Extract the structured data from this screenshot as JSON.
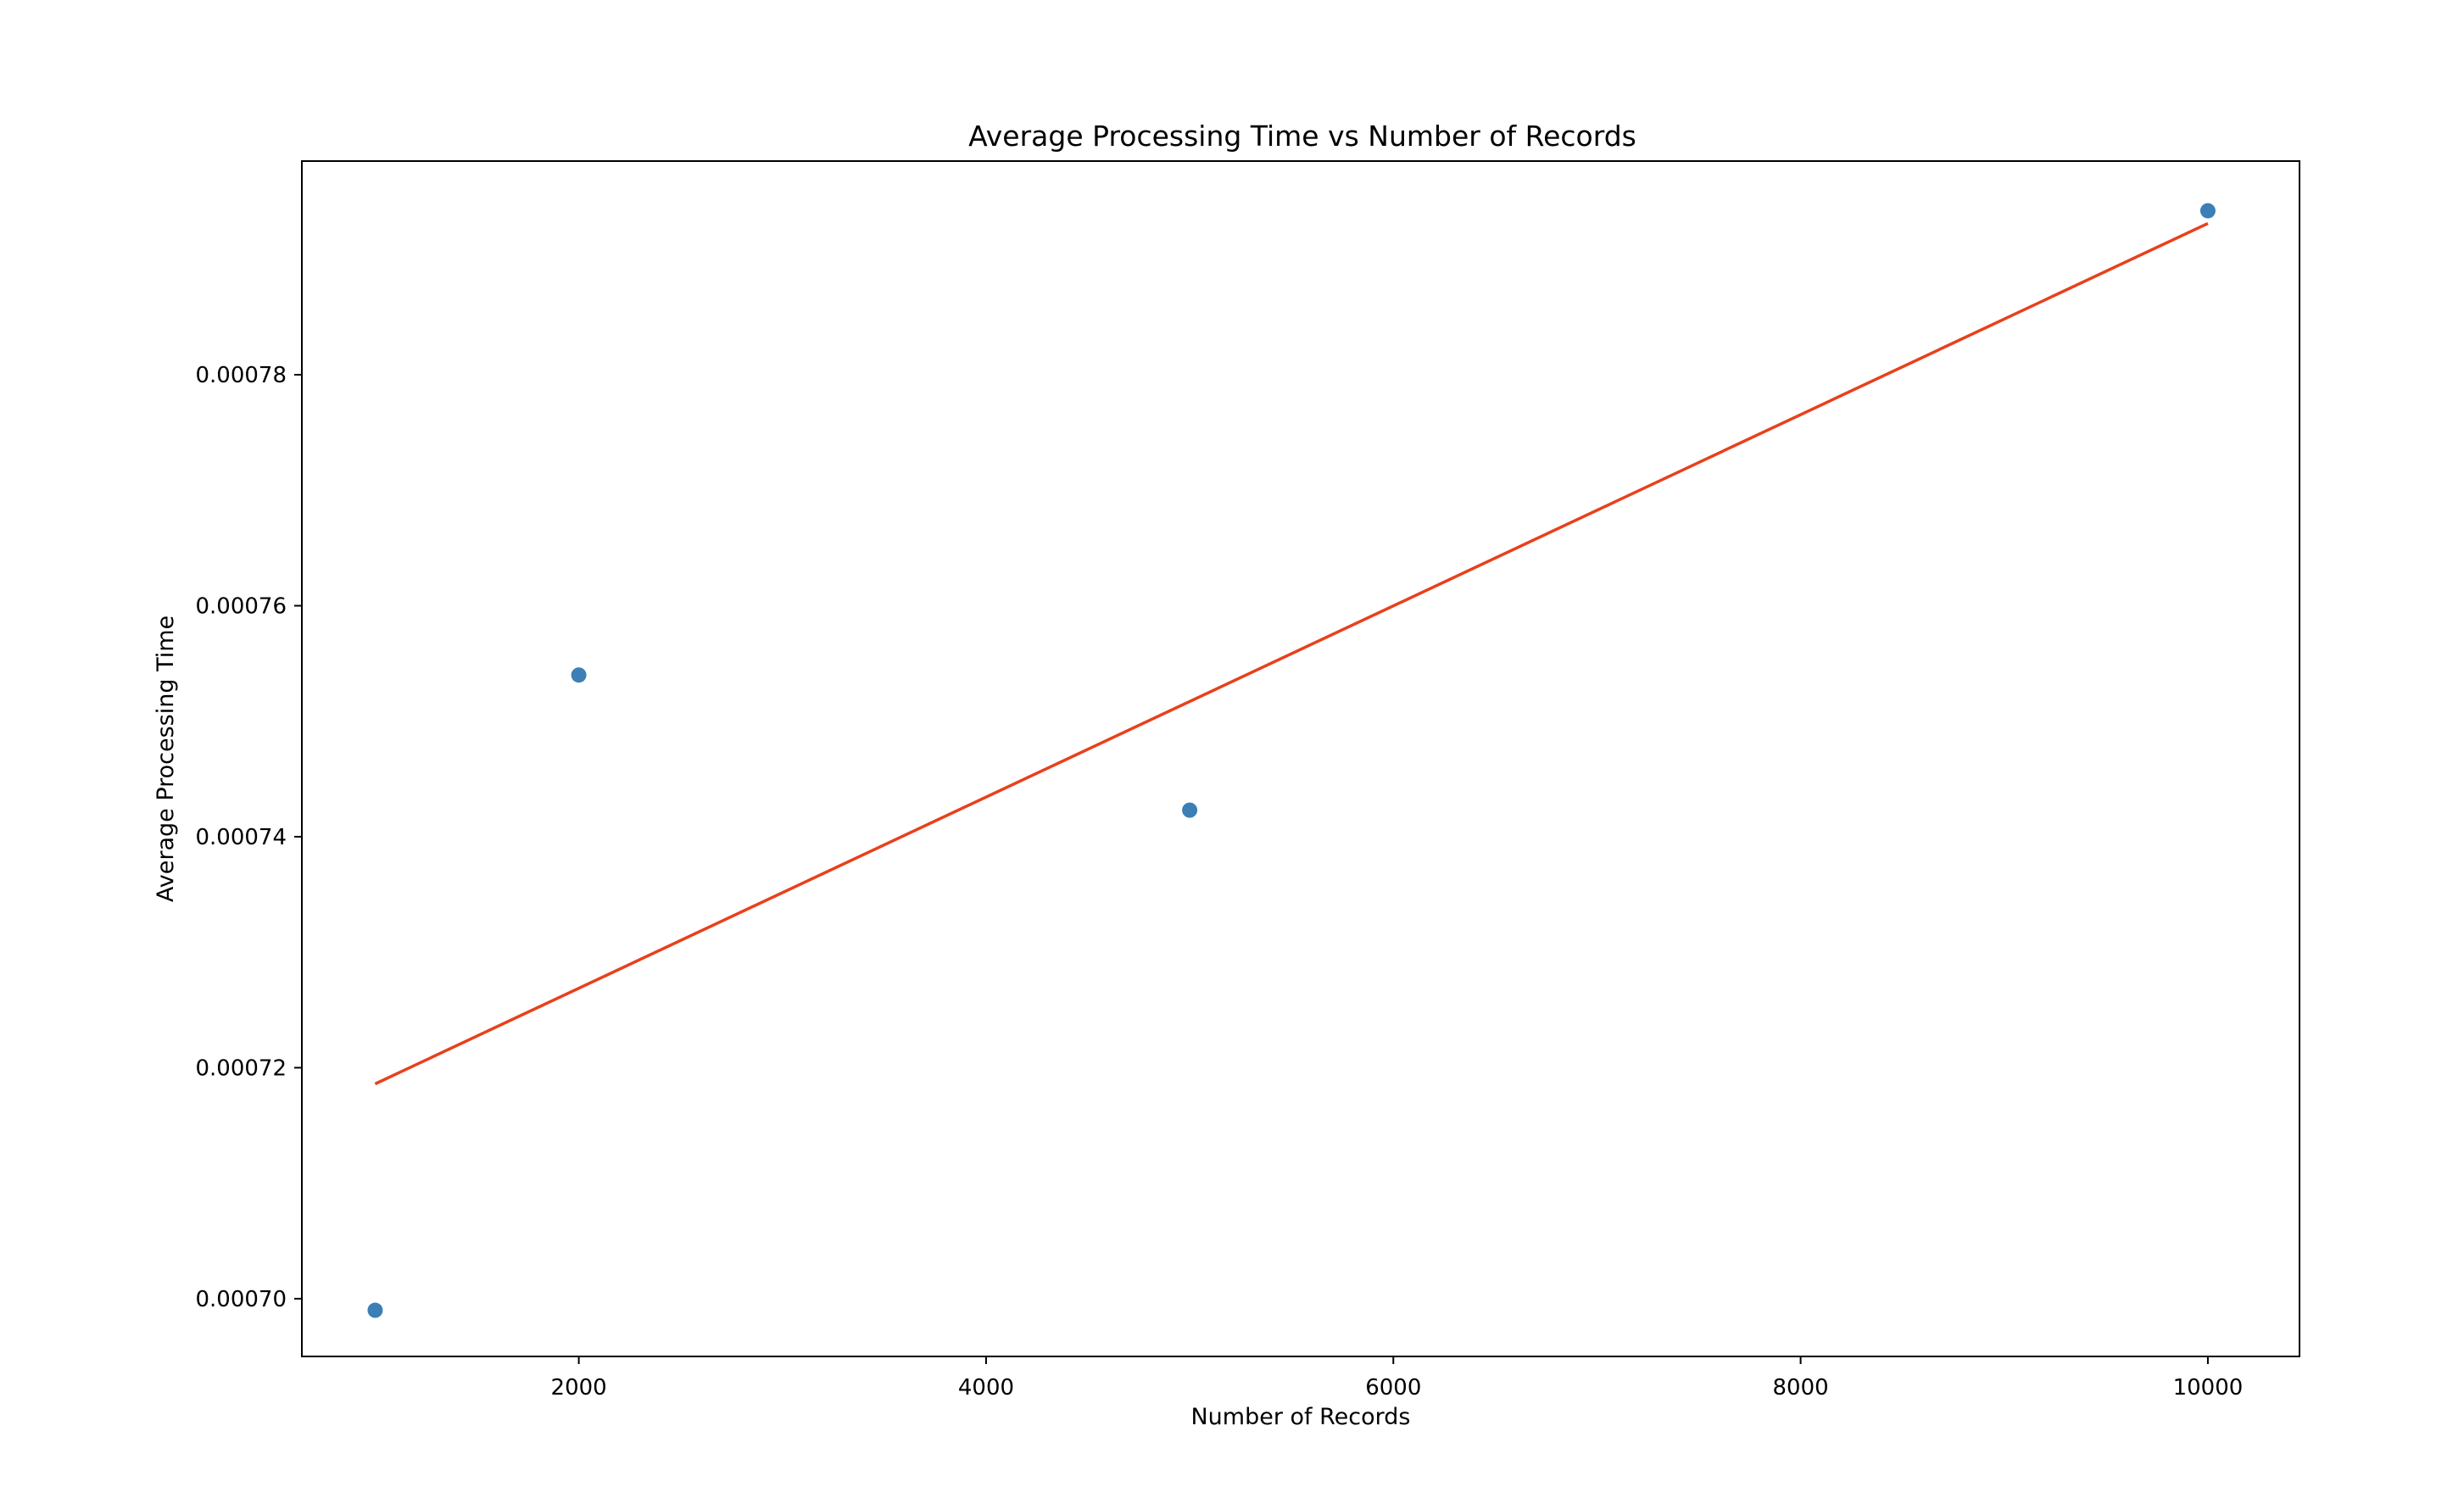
{
  "chart_data": {
    "type": "scatter",
    "title": "Average Processing Time vs Number of Records",
    "xlabel": "Number of Records",
    "ylabel": "Average Processing Time",
    "xlim": [
      640,
      10450
    ],
    "ylim": [
      0.000695,
      0.0007985
    ],
    "x_ticks": [
      2000,
      4000,
      6000,
      8000,
      10000
    ],
    "x_tick_labels": [
      "2000",
      "4000",
      "6000",
      "8000",
      "10000"
    ],
    "y_ticks": [
      0.0007,
      0.00072,
      0.00074,
      0.00076,
      0.00078
    ],
    "y_tick_labels": [
      "0.00070",
      "0.00072",
      "0.00074",
      "0.00076",
      "0.00078"
    ],
    "grid": false,
    "legend": "none",
    "series": [
      {
        "kind": "scatter",
        "x": [
          1000,
          2000,
          5000,
          10000
        ],
        "y": [
          0.000699,
          0.000754,
          0.0007423,
          0.0007942
        ],
        "color": "#3b7fb6"
      },
      {
        "kind": "line",
        "x": [
          1000,
          10000
        ],
        "y": [
          0.0007186,
          0.0007931
        ],
        "color": "#e8401c"
      }
    ]
  }
}
